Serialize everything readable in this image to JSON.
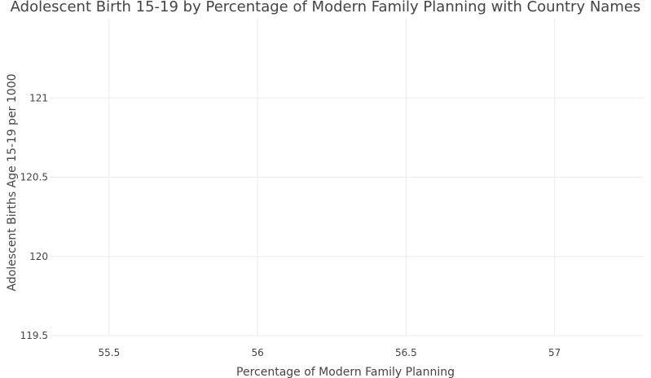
{
  "chart_data": {
    "type": "scatter",
    "title": "Adolescent Birth 15-19 by Percentage of Modern Family Planning with Country Names",
    "xlabel": "Percentage of Modern Family Planning",
    "ylabel": "Adolescent Births Age 15-19 per 1000",
    "xlim": [
      55.3,
      57.3
    ],
    "ylim": [
      119.5,
      121.5
    ],
    "x_ticks": [
      {
        "value": 55.5,
        "label": "55.5"
      },
      {
        "value": 56,
        "label": "56"
      },
      {
        "value": 56.5,
        "label": "56.5"
      },
      {
        "value": 57,
        "label": "57"
      }
    ],
    "y_ticks": [
      {
        "value": 119.5,
        "label": "119.5"
      },
      {
        "value": 120,
        "label": "120"
      },
      {
        "value": 120.5,
        "label": "120.5"
      },
      {
        "value": 121,
        "label": "121"
      }
    ],
    "grid": true,
    "points": []
  }
}
